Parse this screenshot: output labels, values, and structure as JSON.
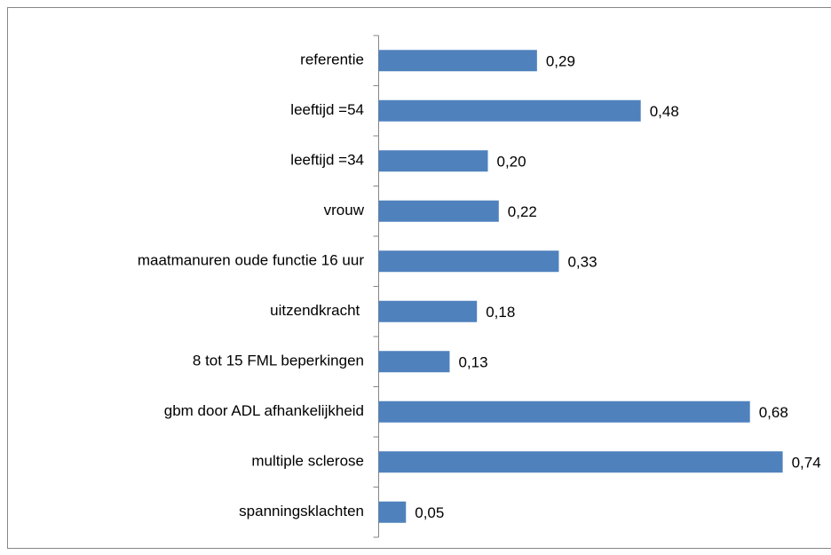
{
  "chart_data": {
    "type": "bar",
    "orientation": "horizontal",
    "color": "#4f81bd",
    "categories": [
      "referentie",
      "leeftijd =54",
      "leeftijd =34",
      "vrouw",
      "maatmanuren oude functie 16 uur",
      "uitzendkracht ",
      "8 tot 15 FML beperkingen",
      "gbm door ADL afhankelijkheid",
      "multiple sclerose",
      "spanningsklachten"
    ],
    "values": [
      0.29,
      0.48,
      0.2,
      0.22,
      0.33,
      0.18,
      0.13,
      0.68,
      0.74,
      0.05
    ],
    "value_labels": [
      "0,29",
      "0,48",
      "0,20",
      "0,22",
      "0,33",
      "0,18",
      "0,13",
      "0,68",
      "0,74",
      "0,05"
    ]
  }
}
